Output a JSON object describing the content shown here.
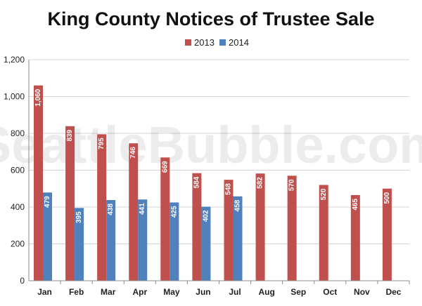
{
  "chart_data": {
    "type": "bar",
    "title": "King County Notices of Trustee Sale",
    "watermark": "SeattleBubble.com",
    "categories": [
      "Jan",
      "Feb",
      "Mar",
      "Apr",
      "May",
      "Jun",
      "Jul",
      "Aug",
      "Sep",
      "Oct",
      "Nov",
      "Dec"
    ],
    "series": [
      {
        "name": "2013",
        "color": "#c0504d",
        "values": [
          1060,
          839,
          795,
          746,
          669,
          584,
          548,
          582,
          570,
          520,
          465,
          500
        ]
      },
      {
        "name": "2014",
        "color": "#4f81bd",
        "values": [
          479,
          395,
          438,
          441,
          425,
          402,
          458,
          null,
          null,
          null,
          null,
          null
        ]
      }
    ],
    "data_labels": {
      "2013": [
        "1,060",
        "839",
        "795",
        "746",
        "669",
        "584",
        "548",
        "582",
        "570",
        "520",
        "465",
        "500"
      ],
      "2014": [
        "479",
        "395",
        "438",
        "441",
        "425",
        "402",
        "458"
      ]
    },
    "ylim": [
      0,
      1200
    ],
    "yticks": [
      0,
      200,
      400,
      600,
      800,
      1000,
      1200
    ],
    "ytick_labels": [
      "0",
      "200",
      "400",
      "600",
      "800",
      "1,000",
      "1,200"
    ],
    "grid": true,
    "legend_position": "top"
  }
}
